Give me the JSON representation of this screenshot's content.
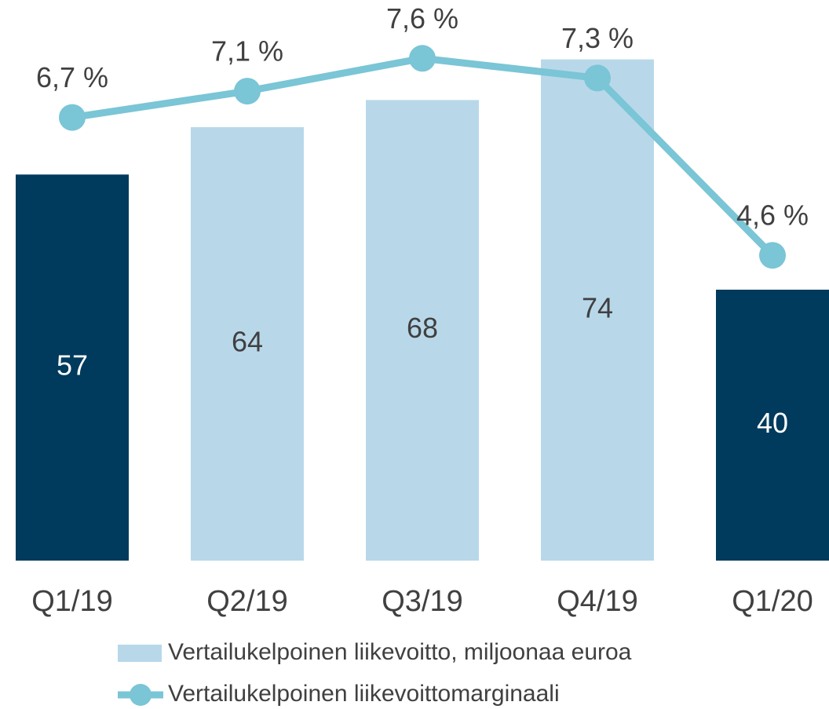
{
  "chart_data": {
    "type": "bar_line",
    "categories": [
      "Q1/19",
      "Q2/19",
      "Q3/19",
      "Q4/19",
      "Q1/20"
    ],
    "series": [
      {
        "name": "Vertailukelpoinen liikevoitto, miljoonaa euroa",
        "type": "bar",
        "color": "#b8d8ea",
        "colors": [
          "#003a5c",
          "#b8d8ea",
          "#b8d8ea",
          "#b8d8ea",
          "#003a5c"
        ],
        "values": [
          57,
          64,
          68,
          74,
          40
        ]
      },
      {
        "name": "Vertailukelpoinen liikevoittomarginaali",
        "type": "line",
        "axis": "y2",
        "color": "#7ac5d6",
        "values": [
          6.7,
          7.1,
          7.6,
          7.3,
          4.6
        ],
        "value_labels": [
          "6,7 %",
          "7,1 %",
          "7,6 %",
          "7,3 %",
          "4,6 %"
        ]
      }
    ],
    "ylim": [
      0,
      83
    ],
    "y2lim": [
      0,
      8.5
    ],
    "legend": "bottom"
  }
}
